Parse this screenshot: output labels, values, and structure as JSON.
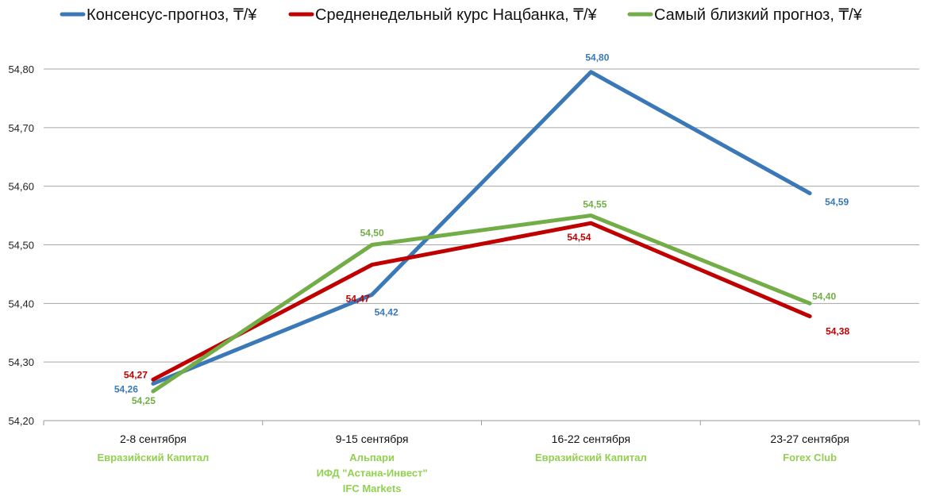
{
  "chart_data": {
    "type": "line",
    "categories": [
      "2-8 сентября",
      "9-15 сентября",
      "16-22 сентября",
      "23-27 сентября"
    ],
    "category_experts": [
      [
        "Евразийский Капитал"
      ],
      [
        "Альпари",
        "ИФД \"Астана-Инвест\"",
        "IFC Markets"
      ],
      [
        "Евразийский Капитал"
      ],
      [
        "Forex Club"
      ]
    ],
    "series": [
      {
        "name": "Консенсус-прогноз, ₸/¥",
        "color": "#3a78b8",
        "values": [
          54.263,
          54.415,
          54.795,
          54.588
        ],
        "labels": [
          "54,26",
          "54,42",
          "54,80",
          "54,59"
        ]
      },
      {
        "name": "Средненедельный курс Нацбанка, ₸/¥",
        "color": "#c00000",
        "values": [
          54.27,
          54.466,
          54.537,
          54.378
        ],
        "labels": [
          "54,27",
          "54,47",
          "54,54",
          "54,38"
        ]
      },
      {
        "name": "Самый близкий прогноз, ₸/¥",
        "color": "#72ad47",
        "values": [
          54.25,
          54.5,
          54.55,
          54.4
        ],
        "labels": [
          "54,25",
          "54,50",
          "54,55",
          "54,40"
        ]
      }
    ],
    "ylim": [
      54.2,
      54.8
    ],
    "yticks": [
      54.2,
      54.3,
      54.4,
      54.5,
      54.6,
      54.7,
      54.8
    ],
    "ytick_labels": [
      "54,20",
      "54,30",
      "54,40",
      "54,50",
      "54,60",
      "54,70",
      "54,80"
    ],
    "expert_color": "#92d050",
    "grid": true,
    "legend_position": "top"
  }
}
